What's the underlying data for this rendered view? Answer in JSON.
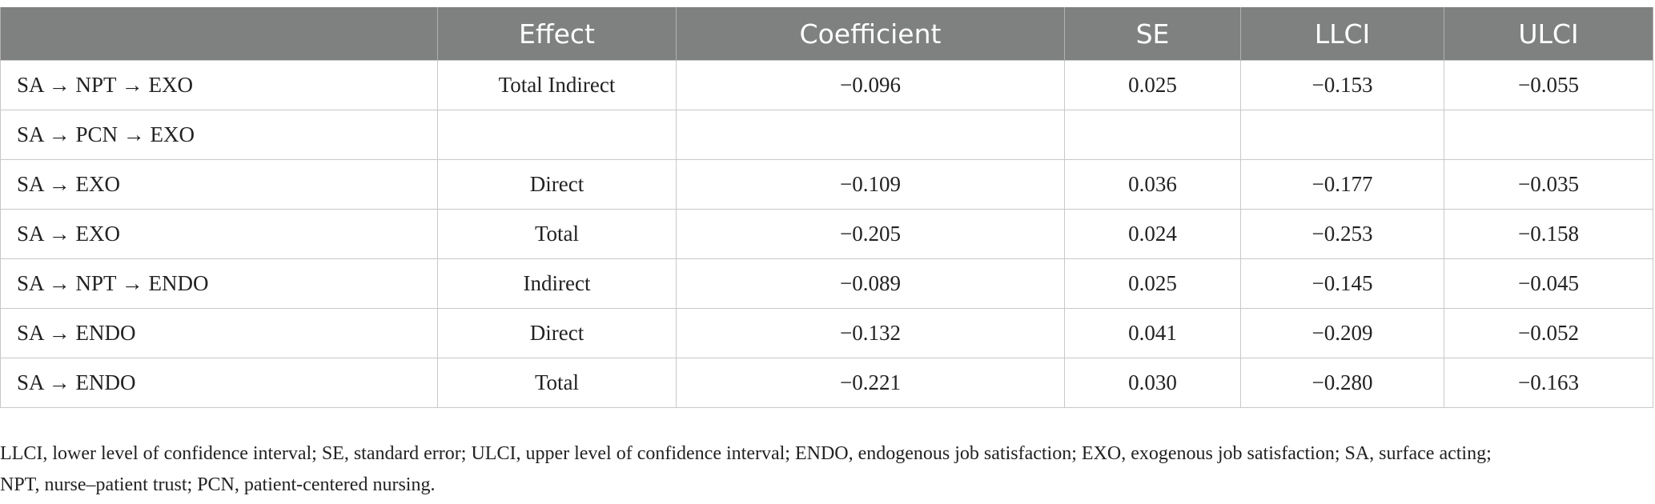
{
  "table": {
    "header": [
      null,
      "Effect",
      "Coefficient",
      "SE",
      "LLCI",
      "ULCI"
    ],
    "rows": [
      [
        "SA → NPT → EXO",
        "Total Indirect",
        "−0.096",
        "0.025",
        "−0.153",
        "−0.055"
      ],
      [
        "SA → PCN → EXO",
        null,
        null,
        null,
        null,
        null
      ],
      [
        "SA → EXO",
        "Direct",
        "−0.109",
        "0.036",
        "−0.177",
        "−0.035"
      ],
      [
        "SA → EXO",
        "Total",
        "−0.205",
        "0.024",
        "−0.253",
        "−0.158"
      ],
      [
        "SA → NPT → ENDO",
        "Indirect",
        "−0.089",
        "0.025",
        "−0.145",
        "−0.045"
      ],
      [
        "SA → ENDO",
        "Direct",
        "−0.132",
        "0.041",
        "−0.209",
        "−0.052"
      ],
      [
        "SA → ENDO",
        "Total",
        "−0.221",
        "0.030",
        "−0.280",
        "−0.163"
      ]
    ]
  },
  "footnote": [
    "LLCI, lower level of confidence interval; SE, standard error; ULCI, upper level of confidence interval; ENDO, endogenous job satisfaction; EXO, exogenous job satisfaction; SA, surface acting;",
    "NPT, nurse–patient trust; PCN, patient-centered nursing."
  ]
}
